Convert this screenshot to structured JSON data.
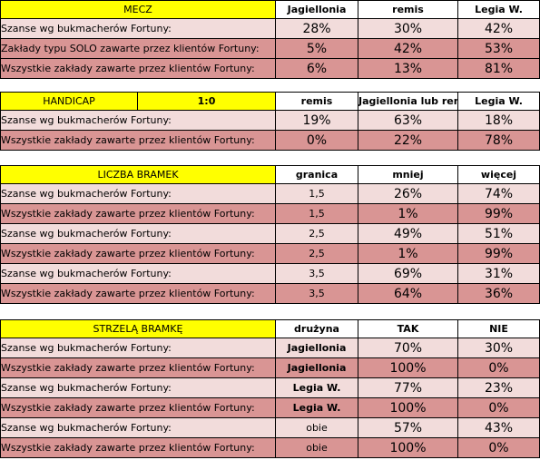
{
  "mecz": {
    "title": "MECZ",
    "cols": [
      "Jagiellonia",
      "remis",
      "Legia W."
    ],
    "rows": [
      {
        "label": "Szanse wg bukmacherów Fortuny:",
        "v": [
          "28%",
          "30%",
          "42%"
        ]
      },
      {
        "label": "Zakłady typu SOLO zawarte przez klientów Fortuny:",
        "v": [
          "5%",
          "42%",
          "53%"
        ]
      },
      {
        "label": "Wszystkie zakłady zawarte przez klientów Fortuny:",
        "v": [
          "6%",
          "13%",
          "81%"
        ]
      }
    ]
  },
  "handicap": {
    "title": "HANDICAP",
    "value": "1:0",
    "cols": [
      "remis",
      "Jagiellonia lub remis",
      "Legia W."
    ],
    "rows": [
      {
        "label": "Szanse wg bukmacherów Fortuny:",
        "v": [
          "19%",
          "63%",
          "18%"
        ]
      },
      {
        "label": "Wszystkie zakłady zawarte przez klientów Fortuny:",
        "v": [
          "0%",
          "22%",
          "78%"
        ]
      }
    ]
  },
  "bramki": {
    "title": "LICZBA BRAMEK",
    "cols": [
      "granica",
      "mniej",
      "więcej"
    ],
    "rows": [
      {
        "label": "Szanse wg bukmacherów Fortuny:",
        "g": "1,5",
        "v": [
          "26%",
          "74%"
        ]
      },
      {
        "label": "Wszystkie zakłady zawarte przez klientów Fortuny:",
        "g": "1,5",
        "v": [
          "1%",
          "99%"
        ]
      },
      {
        "label": "Szanse wg bukmacherów Fortuny:",
        "g": "2,5",
        "v": [
          "49%",
          "51%"
        ]
      },
      {
        "label": "Wszystkie zakłady zawarte przez klientów Fortuny:",
        "g": "2,5",
        "v": [
          "1%",
          "99%"
        ]
      },
      {
        "label": "Szanse wg bukmacherów Fortuny:",
        "g": "3,5",
        "v": [
          "69%",
          "31%"
        ]
      },
      {
        "label": "Wszystkie zakłady zawarte przez klientów Fortuny:",
        "g": "3,5",
        "v": [
          "64%",
          "36%"
        ]
      }
    ]
  },
  "strzela": {
    "title": "STRZELĄ BRAMKĘ",
    "cols": [
      "drużyna",
      "TAK",
      "NIE"
    ],
    "rows": [
      {
        "label": "Szanse wg bukmacherów Fortuny:",
        "d": "Jagiellonia",
        "v": [
          "70%",
          "30%"
        ]
      },
      {
        "label": "Wszystkie zakłady zawarte przez klientów Fortuny:",
        "d": "Jagiellonia",
        "v": [
          "100%",
          "0%"
        ]
      },
      {
        "label": "Szanse wg bukmacherów Fortuny:",
        "d": "Legia W.",
        "v": [
          "77%",
          "23%"
        ]
      },
      {
        "label": "Wszystkie zakłady zawarte przez klientów Fortuny:",
        "d": "Legia W.",
        "v": [
          "100%",
          "0%"
        ]
      },
      {
        "label": "Szanse wg bukmacherów Fortuny:",
        "d": "obie",
        "v": [
          "57%",
          "43%"
        ]
      },
      {
        "label": "Wszystkie zakłady zawarte przez klientów Fortuny:",
        "d": "obie",
        "v": [
          "100%",
          "0%"
        ]
      }
    ]
  },
  "colors": {
    "header": "#ffff00",
    "row_light": "#f2dcdb",
    "row_dark": "#d99594"
  }
}
